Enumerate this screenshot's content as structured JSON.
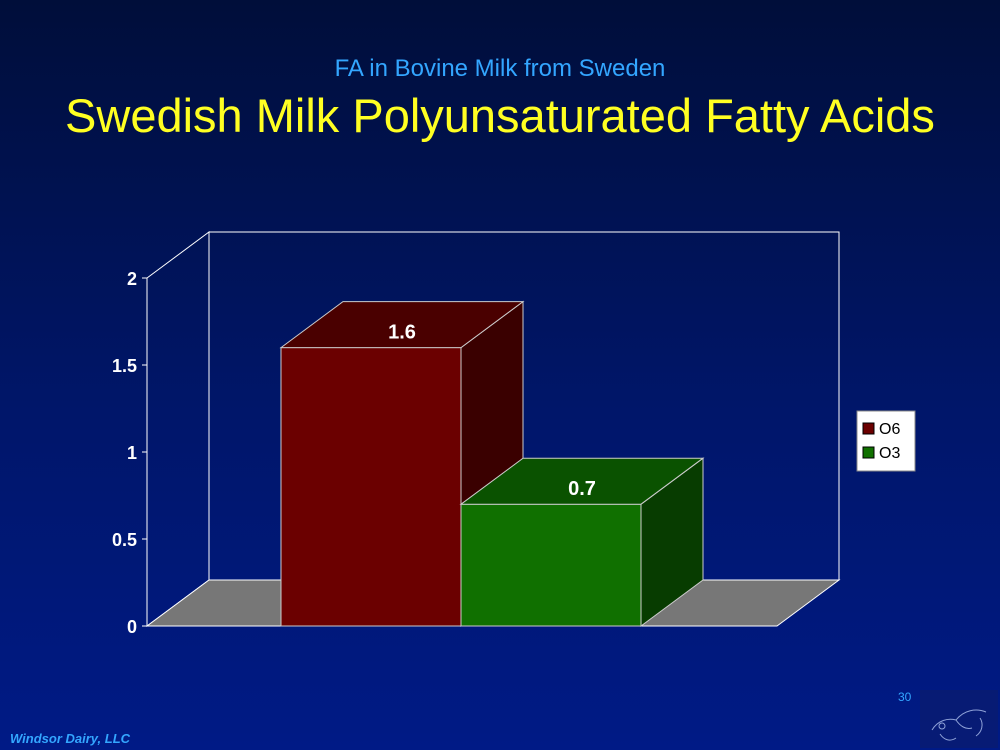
{
  "slide": {
    "subtitle": "FA in Bovine Milk from Sweden",
    "title": "Swedish Milk Polyunsaturated Fatty Acids",
    "footer": "Windsor Dairy, LLC",
    "slide_number": "30"
  },
  "chart_data": {
    "type": "bar",
    "style": "3d",
    "title": "",
    "xlabel": "",
    "ylabel": "",
    "ylim": [
      0,
      2
    ],
    "yticks": [
      0,
      0.5,
      1,
      1.5,
      2
    ],
    "categories": [
      ""
    ],
    "series": [
      {
        "name": "O6",
        "values": [
          1.6
        ],
        "color": "#6b0000",
        "side_color": "#3a0000",
        "top_color": "#4a0000"
      },
      {
        "name": "O3",
        "values": [
          0.7
        ],
        "color": "#107000",
        "side_color": "#073c00",
        "top_color": "#0a5200"
      }
    ],
    "data_labels": true,
    "grid": false,
    "legend": "right",
    "floor_color": "#777777"
  }
}
